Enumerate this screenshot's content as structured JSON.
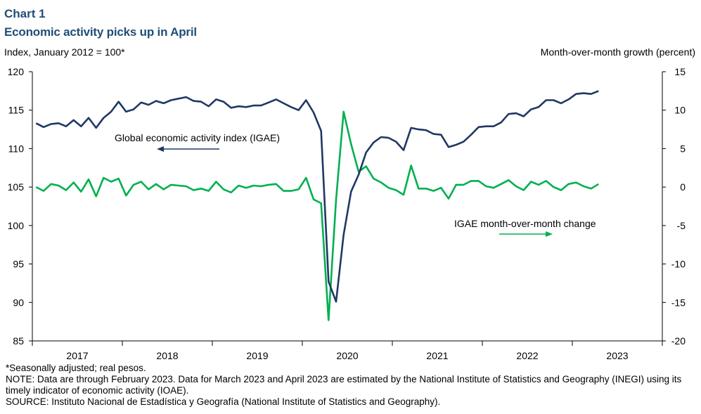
{
  "header": {
    "chart_label": "Chart 1",
    "title": "Economic activity picks up in April"
  },
  "axes": {
    "left_title": "Index,  January 2012 = 100*",
    "right_title": "Month-over-month  growth  (percent)"
  },
  "annotations": {
    "igae_label": "Global economic activity index (IGAE)",
    "mom_label": "IGAE month-over-month  change"
  },
  "footnotes": {
    "asterisk": "*Seasonally adjusted; real pesos.",
    "note": "NOTE: Data are through February 2023. Data for March 2023 and April 2023 are estimated by the National Institute of Statistics and Geography (INEGI) using its timely indicator of economic activity (IOAE).",
    "source": "SOURCE: Instituto Nacional de Estadística y Geografía (National Institute of Statistics and Geography)."
  },
  "colors": {
    "igae": "#203864",
    "mom": "#00b050",
    "title": "#1f4e79"
  },
  "chart_data": {
    "type": "line",
    "x_labels": [
      "2017",
      "2018",
      "2019",
      "2020",
      "2021",
      "2022",
      "2023"
    ],
    "start": "2017-01",
    "end": "2023-04",
    "left_axis": {
      "ylim": [
        85,
        120
      ],
      "ticks": [
        85,
        90,
        95,
        100,
        105,
        110,
        115,
        120
      ]
    },
    "right_axis": {
      "ylim": [
        -20,
        15
      ],
      "ticks": [
        -20,
        -15,
        -10,
        -5,
        0,
        5,
        10,
        15
      ]
    },
    "grid": false,
    "series": [
      {
        "name": "Global economic activity index (IGAE)",
        "axis": "left",
        "values": [
          113.3,
          112.8,
          113.2,
          113.3,
          112.9,
          113.7,
          112.9,
          114.0,
          112.7,
          114.0,
          114.8,
          116.1,
          114.8,
          115.1,
          116.0,
          115.7,
          116.2,
          115.9,
          116.3,
          116.5,
          116.7,
          116.2,
          116.1,
          115.5,
          116.4,
          116.1,
          115.3,
          115.5,
          115.4,
          115.6,
          115.6,
          116.0,
          116.4,
          115.9,
          115.4,
          115.0,
          116.3,
          114.7,
          112.3,
          92.7,
          90.1,
          98.8,
          104.4,
          106.6,
          109.5,
          110.8,
          111.5,
          111.4,
          110.9,
          109.8,
          112.7,
          112.5,
          112.4,
          111.9,
          111.8,
          110.2,
          110.5,
          110.9,
          111.8,
          112.8,
          112.9,
          112.9,
          113.4,
          114.5,
          114.6,
          114.2,
          115.1,
          115.4,
          116.3,
          116.3,
          115.9,
          116.4,
          117.1,
          117.2,
          117.1,
          117.5
        ]
      },
      {
        "name": "IGAE month-over-month  change",
        "axis": "right",
        "values": [
          0.0,
          -0.5,
          0.4,
          0.2,
          -0.4,
          0.6,
          -0.6,
          1.0,
          -1.2,
          1.2,
          0.7,
          1.1,
          -1.1,
          0.3,
          0.7,
          -0.3,
          0.4,
          -0.3,
          0.3,
          0.2,
          0.1,
          -0.4,
          -0.2,
          -0.5,
          0.7,
          -0.3,
          -0.7,
          0.2,
          -0.1,
          0.2,
          0.1,
          0.3,
          0.4,
          -0.5,
          -0.5,
          -0.3,
          1.2,
          -1.6,
          -2.1,
          -17.3,
          -1.6,
          9.8,
          5.6,
          2.0,
          2.7,
          1.1,
          0.6,
          -0.1,
          -0.4,
          -1.0,
          2.8,
          -0.2,
          -0.2,
          -0.5,
          -0.1,
          -1.5,
          0.3,
          0.3,
          0.8,
          0.8,
          0.1,
          -0.1,
          0.4,
          0.9,
          0.1,
          -0.4,
          0.7,
          0.3,
          0.8,
          0.0,
          -0.4,
          0.4,
          0.6,
          0.1,
          -0.2,
          0.4
        ]
      }
    ]
  }
}
